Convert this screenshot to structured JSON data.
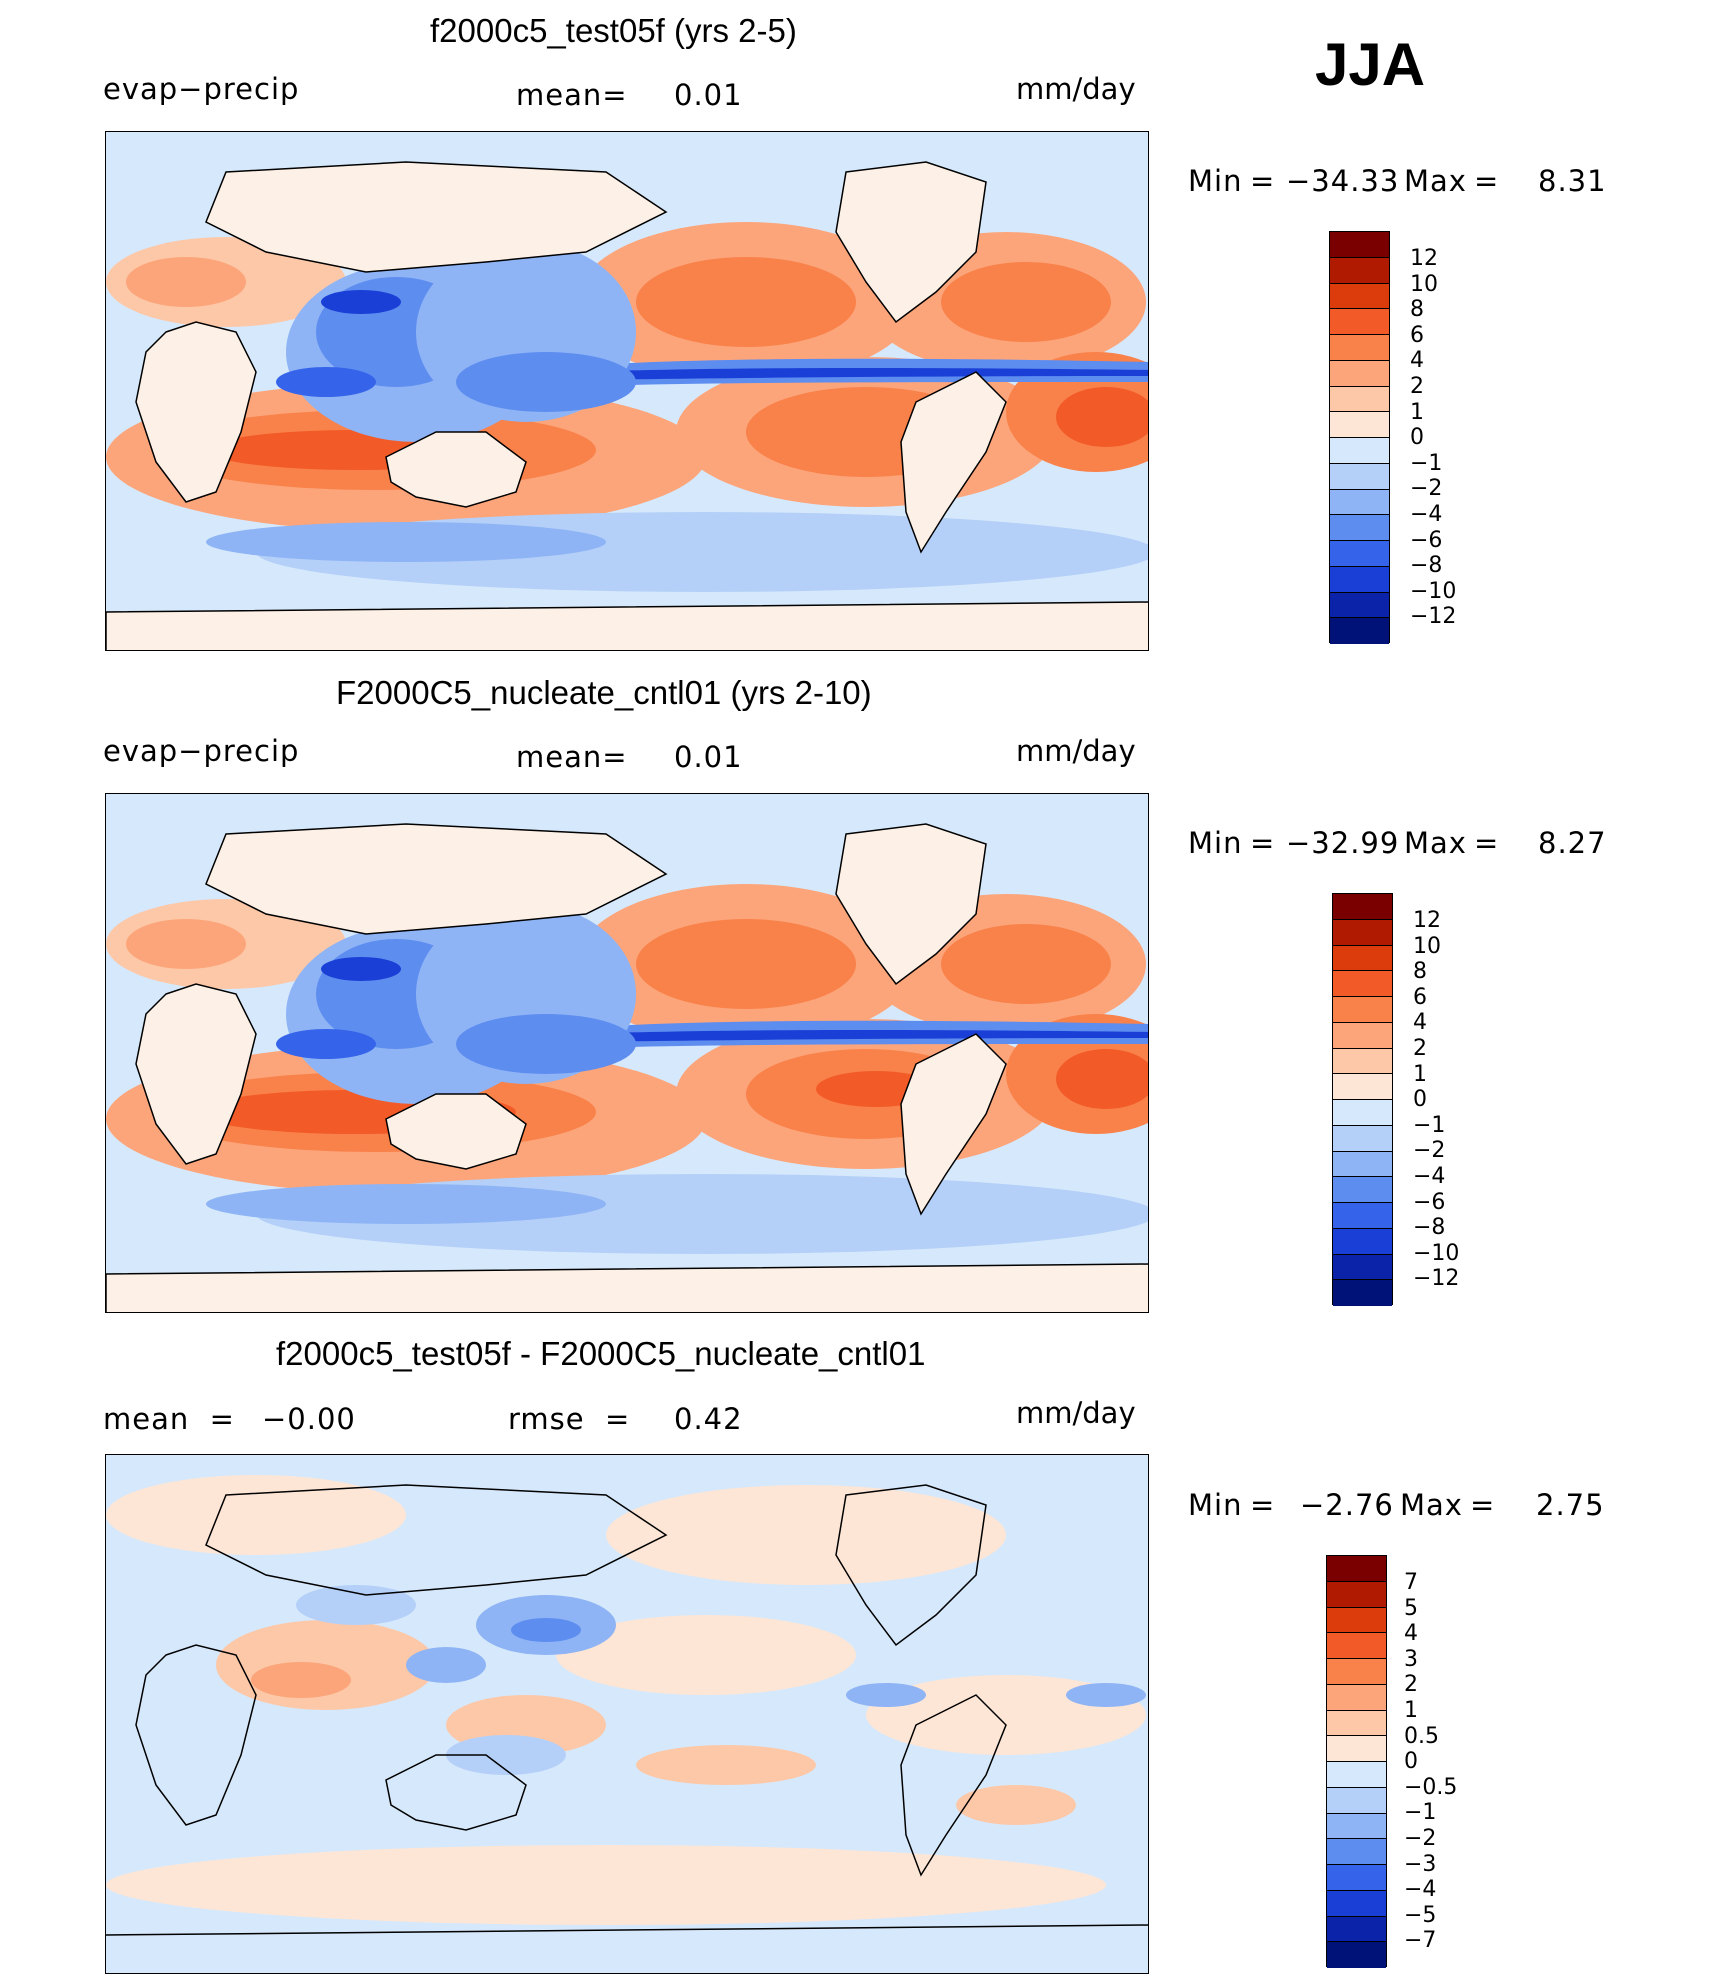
{
  "season": "JJA",
  "panels": [
    {
      "title": "f2000c5_test05f (yrs 2-5)",
      "left_label": "evap−precip",
      "mean_label": "mean=",
      "mean_value": "0.01",
      "units": "mm/day",
      "min_label": "Min",
      "eq": "=",
      "min_value": "−34.33",
      "max_label": "Max",
      "max_value": "8.31",
      "colorbar_labels": [
        "12",
        "10",
        "8",
        "6",
        "4",
        "2",
        "1",
        "0",
        "−1",
        "−2",
        "−4",
        "−6",
        "−8",
        "−10",
        "−12"
      ]
    },
    {
      "title": "F2000C5_nucleate_cntl01 (yrs 2-10)",
      "left_label": "evap−precip",
      "mean_label": "mean=",
      "mean_value": "0.01",
      "units": "mm/day",
      "min_label": "Min",
      "eq": "=",
      "min_value": "−32.99",
      "max_label": "Max",
      "max_value": "8.27",
      "colorbar_labels": [
        "12",
        "10",
        "8",
        "6",
        "4",
        "2",
        "1",
        "0",
        "−1",
        "−2",
        "−4",
        "−6",
        "−8",
        "−10",
        "−12"
      ]
    },
    {
      "title": "f2000c5_test05f - F2000C5_nucleate_cntl01",
      "mean_label": "mean  =",
      "mean_value": "−0.00",
      "rmse_label": "rmse  =",
      "rmse_value": "0.42",
      "units": "mm/day",
      "min_label": "Min",
      "eq": "=",
      "min_value": "−2.76",
      "max_label": "Max",
      "max_value": "2.75",
      "colorbar_labels": [
        "7",
        "5",
        "4",
        "3",
        "2",
        "1",
        "0.5",
        "0",
        "−0.5",
        "−1",
        "−2",
        "−3",
        "−4",
        "−5",
        "−7"
      ]
    }
  ],
  "colors": {
    "scale_16": [
      "#7a0000",
      "#b01a00",
      "#dc3b0c",
      "#f25a28",
      "#f9814a",
      "#fca57a",
      "#fdc8a8",
      "#fde6d6",
      "#d6e8fb",
      "#b4d0f8",
      "#8eb4f5",
      "#5e8df0",
      "#3563ea",
      "#1a3fd6",
      "#0b23a8",
      "#001277"
    ],
    "land": "#fdf1e7",
    "coast": "#000000"
  }
}
